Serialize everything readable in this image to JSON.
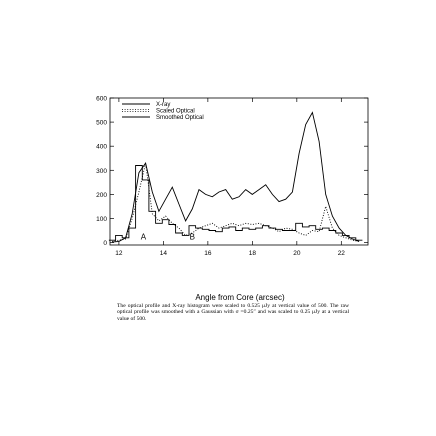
{
  "chart_data": {
    "type": "line",
    "xlabel": "Angle from Core (arcsec)",
    "ylabel": "",
    "xlim": [
      11.6,
      23.2
    ],
    "ylim": [
      -10,
      600
    ],
    "xticks": [
      12,
      14,
      16,
      18,
      20,
      22
    ],
    "yticks": [
      0,
      100,
      200,
      300,
      400,
      500,
      600
    ],
    "grid": false,
    "legend_position": "top-left",
    "annotations": [
      {
        "text": "A",
        "x": 13.1,
        "y": 12
      },
      {
        "text": "B",
        "x": 15.3,
        "y": 12
      }
    ],
    "series": [
      {
        "name": "X-ray",
        "style": "histogram",
        "x": [
          11.7,
          12.0,
          12.3,
          12.6,
          12.9,
          13.2,
          13.5,
          13.8,
          14.1,
          14.4,
          14.7,
          15.0,
          15.3,
          15.6,
          15.9,
          16.2,
          16.5,
          16.8,
          17.1,
          17.4,
          17.7,
          18.0,
          18.3,
          18.6,
          18.9,
          19.2,
          19.5,
          19.8,
          20.1,
          20.4,
          20.7,
          21.0,
          21.3,
          21.6,
          21.9,
          22.2,
          22.5,
          22.8
        ],
        "y": [
          10,
          30,
          20,
          60,
          320,
          260,
          130,
          80,
          95,
          75,
          40,
          30,
          70,
          60,
          55,
          50,
          45,
          60,
          65,
          50,
          60,
          55,
          60,
          70,
          60,
          55,
          50,
          50,
          80,
          65,
          70,
          55,
          60,
          50,
          40,
          30,
          20,
          10
        ]
      },
      {
        "name": "Scaled Optical",
        "style": "dotted",
        "x": [
          11.7,
          12.0,
          12.3,
          12.6,
          12.9,
          13.2,
          13.5,
          13.8,
          14.1,
          14.4,
          14.7,
          15.0,
          15.3,
          15.6,
          15.9,
          16.2,
          16.5,
          16.8,
          17.1,
          17.4,
          17.7,
          18.0,
          18.3,
          18.6,
          18.9,
          19.2,
          19.5,
          19.8,
          20.1,
          20.4,
          20.7,
          21.0,
          21.3,
          21.6,
          21.9,
          22.2,
          22.5,
          22.8
        ],
        "y": [
          5,
          10,
          15,
          100,
          210,
          330,
          120,
          90,
          110,
          80,
          60,
          30,
          40,
          60,
          70,
          80,
          60,
          70,
          80,
          70,
          80,
          75,
          80,
          70,
          60,
          45,
          60,
          55,
          40,
          30,
          50,
          45,
          150,
          60,
          30,
          20,
          10,
          5
        ]
      },
      {
        "name": "Smoothed Optical",
        "style": "solid",
        "x": [
          11.7,
          12.0,
          12.3,
          12.6,
          12.9,
          13.2,
          13.5,
          13.8,
          14.1,
          14.4,
          14.7,
          15.0,
          15.3,
          15.6,
          15.9,
          16.2,
          16.5,
          16.8,
          17.1,
          17.4,
          17.7,
          18.0,
          18.3,
          18.6,
          18.9,
          19.2,
          19.5,
          19.8,
          20.1,
          20.4,
          20.7,
          21.0,
          21.3,
          21.6,
          21.9,
          22.2,
          22.5,
          22.8
        ],
        "y": [
          2,
          5,
          20,
          120,
          290,
          330,
          210,
          130,
          180,
          230,
          160,
          90,
          140,
          220,
          200,
          190,
          210,
          220,
          180,
          190,
          220,
          200,
          220,
          240,
          200,
          170,
          180,
          210,
          370,
          490,
          540,
          420,
          200,
          110,
          60,
          30,
          15,
          5
        ]
      }
    ]
  },
  "caption": "The optical profile and X-ray histogram were scaled to 0.525 μJy at vertical value of 500. The raw optical profile was smoothed with a Gaussian with σ =0.25″ and was scaled to 0.25 μJy at a vertical value of 500."
}
